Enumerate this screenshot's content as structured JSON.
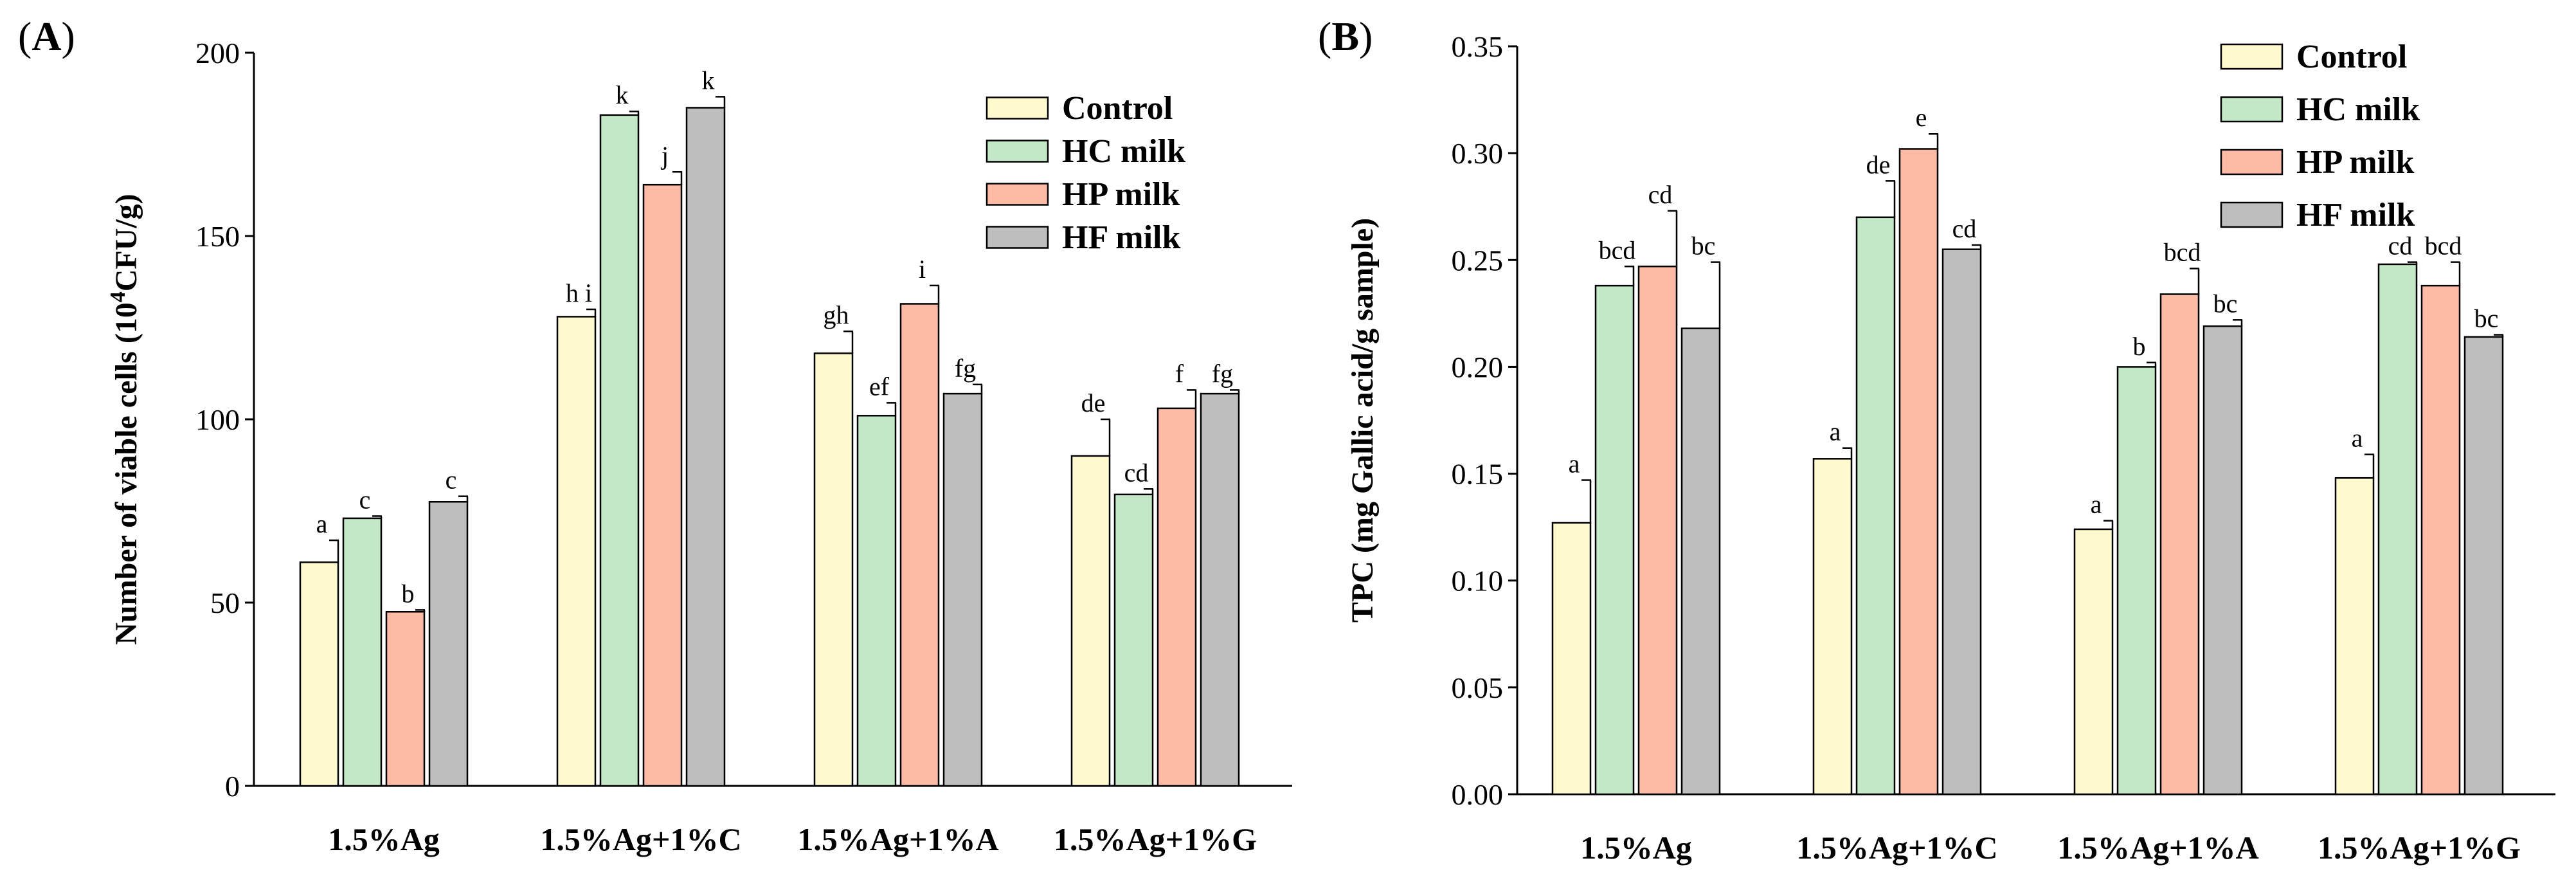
{
  "chart_data": [
    {
      "type": "bar",
      "panel_label": "(A)",
      "panel_letter": "A",
      "title": "",
      "xlabel": "",
      "ylabel_main": "Number of viable cells (10",
      "ylabel_sup": "4",
      "ylabel_rest": "CFU/g)",
      "ylim": [
        0,
        200
      ],
      "yticks": [
        0,
        50,
        100,
        150,
        200
      ],
      "ytick_labels": [
        "0",
        "50",
        "100",
        "150",
        "200"
      ],
      "grid": false,
      "legend_position": "top-right",
      "categories": [
        "1.5%Ag",
        "1.5%Ag+1%C",
        "1.5%Ag+1%A",
        "1.5%Ag+1%G"
      ],
      "series": [
        {
          "name": "Control",
          "color": "#FFFACD",
          "values": [
            61,
            128,
            118,
            90
          ],
          "errors": [
            6,
            2,
            6,
            10
          ],
          "letters": [
            "a",
            "h i",
            "gh",
            "de"
          ]
        },
        {
          "name": "HC milk",
          "color": "#C2E8C6",
          "values": [
            73,
            183,
            101,
            79.5
          ],
          "errors": [
            0.6,
            1,
            3.5,
            1.5
          ],
          "letters": [
            "c",
            "k",
            "ef",
            "cd"
          ]
        },
        {
          "name": "HP milk",
          "color": "#FDBBA6",
          "values": [
            47.5,
            164,
            131.5,
            103
          ],
          "errors": [
            0.5,
            3.5,
            5,
            5
          ],
          "letters": [
            "b",
            "j",
            "i",
            "f"
          ]
        },
        {
          "name": "HF milk",
          "color": "#BEBEBE",
          "values": [
            77.5,
            185,
            107,
            107
          ],
          "errors": [
            1.5,
            3,
            2.5,
            1
          ],
          "letters": [
            "c",
            "k",
            "fg",
            "fg"
          ]
        }
      ]
    },
    {
      "type": "bar",
      "panel_label": "(B)",
      "panel_letter": "B",
      "title": "",
      "xlabel": "",
      "ylabel_main": "TPC (mg Gallic acid/g sample)",
      "ylim": [
        0,
        0.35
      ],
      "yticks": [
        0,
        0.05,
        0.1,
        0.15,
        0.2,
        0.25,
        0.3,
        0.35
      ],
      "ytick_labels": [
        "0.00",
        "0.05",
        "0.10",
        "0.15",
        "0.20",
        "0.25",
        "0.30",
        "0.35"
      ],
      "grid": false,
      "legend_position": "top-right",
      "categories": [
        "1.5%Ag",
        "1.5%Ag+1%C",
        "1.5%Ag+1%A",
        "1.5%Ag+1%G"
      ],
      "series": [
        {
          "name": "Control",
          "color": "#FFFACD",
          "values": [
            0.127,
            0.157,
            0.124,
            0.148
          ],
          "errors": [
            0.02,
            0.005,
            0.004,
            0.011
          ],
          "letters": [
            "a",
            "a",
            "a",
            "a"
          ]
        },
        {
          "name": "HC milk",
          "color": "#C2E8C6",
          "values": [
            0.238,
            0.27,
            0.2,
            0.248
          ],
          "errors": [
            0.009,
            0.017,
            0.002,
            0.001
          ],
          "letters": [
            "bcd",
            "de",
            "b",
            "cd"
          ]
        },
        {
          "name": "HP milk",
          "color": "#FDBBA6",
          "values": [
            0.247,
            0.302,
            0.234,
            0.238
          ],
          "errors": [
            0.026,
            0.007,
            0.012,
            0.011
          ],
          "letters": [
            "cd",
            "e",
            "bcd",
            "bcd"
          ]
        },
        {
          "name": "HF milk",
          "color": "#BEBEBE",
          "values": [
            0.218,
            0.255,
            0.219,
            0.214
          ],
          "errors": [
            0.031,
            0.002,
            0.003,
            0.001
          ],
          "letters": [
            "bc",
            "cd",
            "bc",
            "bc"
          ]
        }
      ]
    }
  ]
}
